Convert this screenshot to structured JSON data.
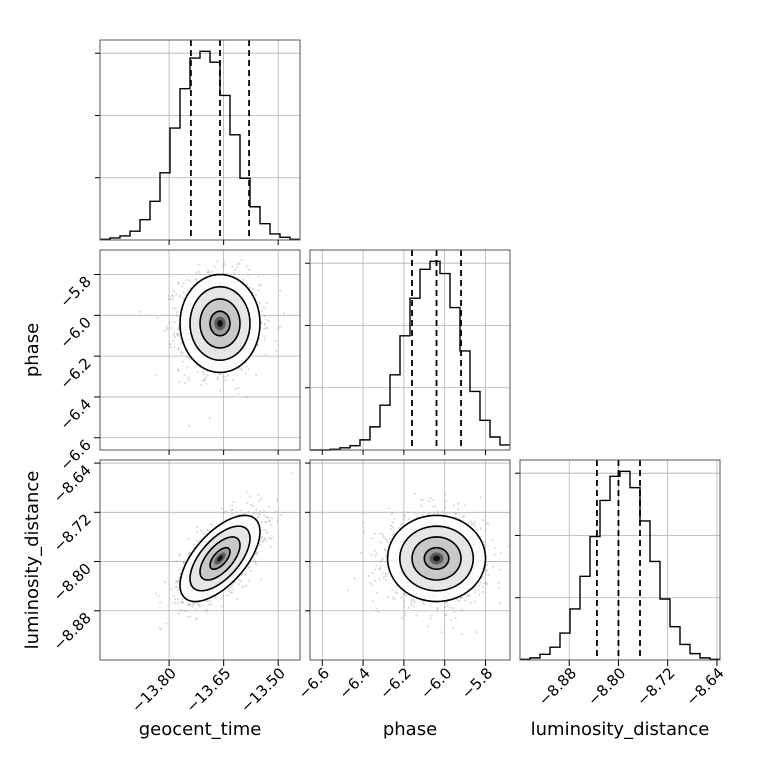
{
  "chart_data": {
    "type": "corner",
    "parameters": [
      "geocent_time",
      "phase",
      "luminosity_distance"
    ],
    "axis_labels": {
      "x": [
        "geocent_time",
        "phase",
        "luminosity_distance"
      ],
      "y": [
        "",
        "phase",
        "luminosity_distance"
      ]
    },
    "ranges": {
      "geocent_time": [
        -13.99,
        -13.44
      ],
      "phase": [
        -6.66,
        -5.68
      ],
      "luminosity_distance": [
        -8.96,
        -8.635
      ]
    },
    "ticks": {
      "geocent_time": [
        -13.8,
        -13.65,
        -13.5
      ],
      "phase": [
        -6.6,
        -6.4,
        -6.2,
        -6.0,
        -5.8
      ],
      "luminosity_distance": [
        -8.88,
        -8.8,
        -8.72,
        -8.64
      ]
    },
    "tick_labels": {
      "geocent_time": [
        "−13.80",
        "−13.65",
        "−13.50"
      ],
      "phase": [
        "−6.6",
        "−6.4",
        "−6.2",
        "−6.0",
        "−5.8"
      ],
      "luminosity_distance": [
        "−8.88",
        "−8.80",
        "−8.72",
        "−8.64"
      ]
    },
    "quantiles": {
      "geocent_time": [
        -13.74,
        -13.66,
        -13.58
      ],
      "phase": [
        -6.16,
        -6.04,
        -5.92
      ],
      "luminosity_distance": [
        -8.835,
        -8.8,
        -8.765
      ]
    },
    "histograms": {
      "geocent_time": {
        "bin_edges": [
          -13.99,
          -13.9625,
          -13.935,
          -13.9075,
          -13.88,
          -13.8525,
          -13.825,
          -13.7975,
          -13.77,
          -13.7425,
          -13.715,
          -13.6875,
          -13.66,
          -13.6325,
          -13.605,
          -13.5775,
          -13.55,
          -13.5225,
          -13.495,
          -13.4675,
          -13.44
        ],
        "counts": [
          1,
          3,
          6,
          13,
          30,
          57,
          99,
          165,
          223,
          268,
          278,
          262,
          213,
          155,
          91,
          49,
          24,
          9,
          4,
          1
        ]
      },
      "phase": {
        "bin_edges": [
          -6.66,
          -6.611,
          -6.562,
          -6.513,
          -6.464,
          -6.415,
          -6.366,
          -6.317,
          -6.268,
          -6.219,
          -6.17,
          -6.121,
          -6.072,
          -6.023,
          -5.974,
          -5.925,
          -5.876,
          -5.827,
          -5.778,
          -5.729,
          -5.68
        ],
        "counts": [
          0,
          0,
          1,
          3,
          6,
          14,
          32,
          62,
          104,
          158,
          210,
          250,
          261,
          244,
          197,
          137,
          81,
          41,
          18,
          7
        ]
      },
      "luminosity_distance": {
        "bin_edges": [
          -8.96,
          -8.94375,
          -8.9275,
          -8.91125,
          -8.895,
          -8.87875,
          -8.8625,
          -8.84625,
          -8.83,
          -8.81375,
          -8.7975,
          -8.78125,
          -8.765,
          -8.74875,
          -8.7325,
          -8.71625,
          -8.7,
          -8.68375,
          -8.6675,
          -8.65125,
          -8.635
        ],
        "counts": [
          1,
          3,
          8,
          18,
          38,
          72,
          118,
          174,
          225,
          259,
          266,
          243,
          196,
          139,
          86,
          47,
          22,
          9,
          3,
          1
        ]
      }
    },
    "density_panels": [
      {
        "x": "geocent_time",
        "y": "phase",
        "center": [
          -13.66,
          -6.04
        ],
        "sd": [
          0.055,
          0.12
        ],
        "correlation": 0.0
      },
      {
        "x": "geocent_time",
        "y": "luminosity_distance",
        "center": [
          -13.66,
          -8.795
        ],
        "sd": [
          0.055,
          0.035
        ],
        "correlation": 0.62
      },
      {
        "x": "phase",
        "y": "luminosity_distance",
        "center": [
          -6.04,
          -8.795
        ],
        "sd": [
          0.12,
          0.035
        ],
        "correlation": 0.0
      }
    ],
    "contour_levels_sigma": [
      0.5,
      1.0,
      1.5,
      2.0
    ],
    "grid": true,
    "colors": {
      "line": "#000000",
      "grid": "#b0b0b0",
      "scatter": "#9a9a9a"
    }
  }
}
